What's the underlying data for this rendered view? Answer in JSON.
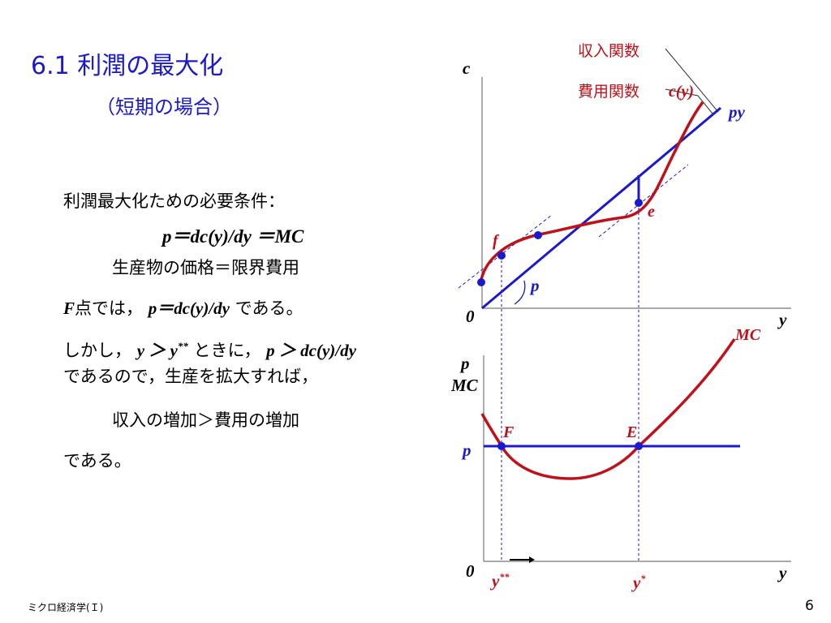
{
  "title": "6.1  利潤の最大化",
  "subtitle": "（短期の場合）",
  "body": {
    "line1": "利潤最大化ための必要条件：",
    "line2": "p＝dc(y)/dy ＝MC",
    "line3": "生産物の価格＝限界費用",
    "line4_prefix": "F",
    "line4_mid": "点では，",
    "line4_eq": "p＝dc(y)/dy",
    "line4_suffix": "である。",
    "line5_prefix": "しかし，",
    "line5_cond": "y ＞ y",
    "line5_sup": "**",
    "line5_mid": " ときに，",
    "line5_eq": "p ＞ dc(y)/dy",
    "line6": "であるので，生産を拡大すれば，",
    "line7": "収入の増加＞費用の増加",
    "line8": "である。"
  },
  "diagram_labels": {
    "top_axis_y": "c",
    "revenue_fn": "収入関数",
    "cost_fn": "費用関数",
    "cy": "c(y)",
    "py": "py",
    "point_e": "e",
    "point_f": "f",
    "slope_p": "p",
    "origin_top": "0",
    "x_top": "y",
    "mc": "MC",
    "bottom_axis_p": "p",
    "bottom_axis_mc": "MC",
    "point_F": "F",
    "point_E": "E",
    "price_p": "p",
    "origin_bottom": "0",
    "x_bottom": "y",
    "y_star_star": "y",
    "y_star_star_sup": "**",
    "y_star": "y",
    "y_star_sup": "*"
  },
  "colors": {
    "title": "#1a1acc",
    "curve": "#c0101a",
    "line": "#1a1acc",
    "dot": "#1a1acc"
  },
  "footer": "ミクロ経済学(Ｉ)",
  "page_number": "6"
}
